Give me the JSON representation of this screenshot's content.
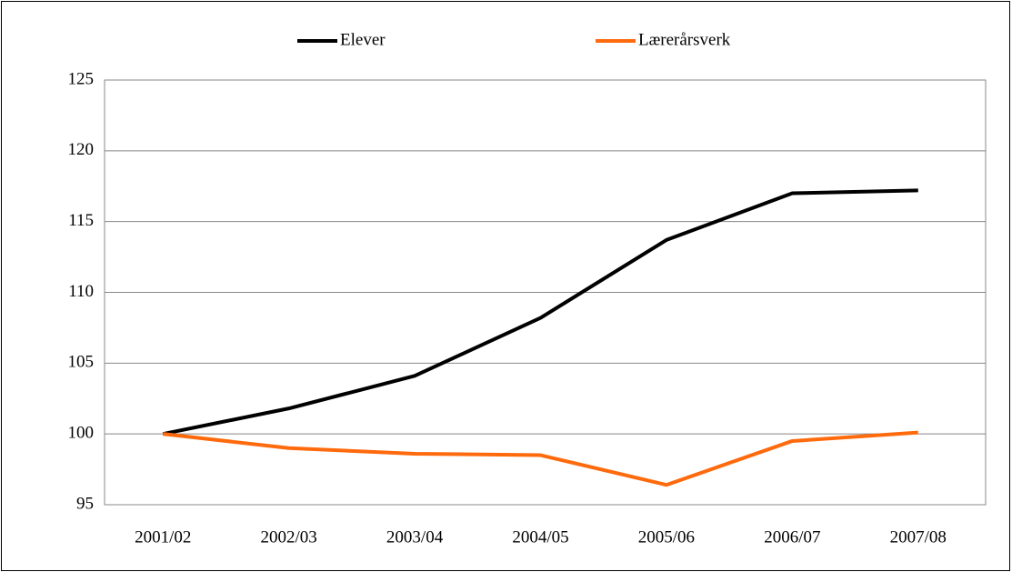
{
  "chart_data": {
    "type": "line",
    "categories": [
      "2001/02",
      "2002/03",
      "2003/04",
      "2004/05",
      "2005/06",
      "2006/07",
      "2007/08"
    ],
    "series": [
      {
        "name": "Elever",
        "color": "#000000",
        "values": [
          100,
          101.8,
          104.1,
          108.2,
          113.7,
          117.0,
          117.2
        ]
      },
      {
        "name": "Lærerårsverk",
        "color": "#ff6a0d",
        "values": [
          100,
          99.0,
          98.6,
          98.5,
          96.4,
          99.5,
          100.1
        ]
      }
    ],
    "ylim": [
      95,
      125
    ],
    "yticks": [
      95,
      100,
      105,
      110,
      115,
      120,
      125
    ],
    "grid": true,
    "legend": "top"
  }
}
